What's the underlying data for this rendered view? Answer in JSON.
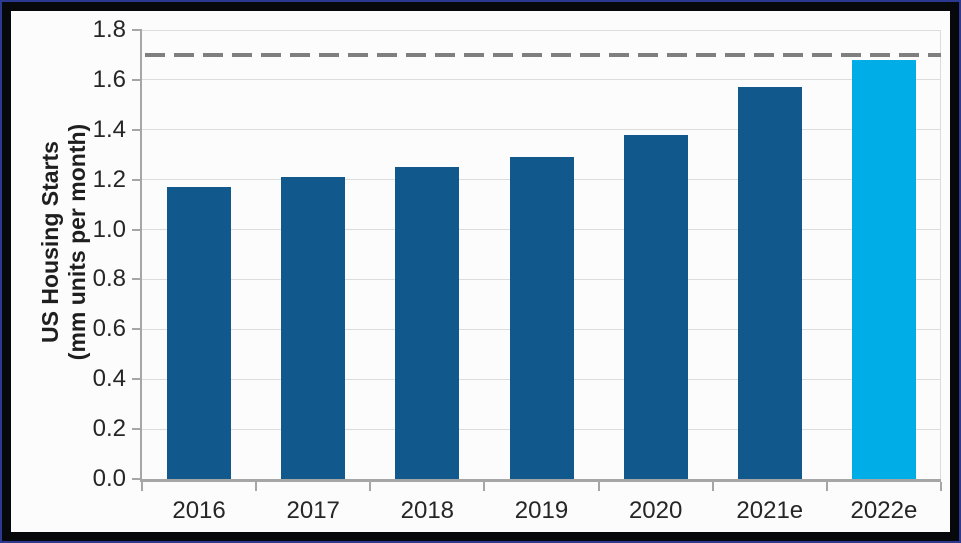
{
  "frame": {
    "outer_border_color": "#2B3990",
    "inner_border_color": "#07080C",
    "background_color": "#FCFCFC"
  },
  "chart_data": {
    "type": "bar",
    "title": "",
    "ylabel": "US Housing Starts (mm units per month)",
    "ylabel_lines": [
      "US Housing Starts",
      "(mm units per month)"
    ],
    "xlabel": "",
    "categories": [
      "2016",
      "2017",
      "2018",
      "2019",
      "2020",
      "2021e",
      "2022e"
    ],
    "values": [
      1.17,
      1.21,
      1.25,
      1.29,
      1.38,
      1.57,
      1.68
    ],
    "ylim": [
      0.0,
      1.8
    ],
    "ytick_step": 0.2,
    "yticks": [
      "1.8",
      "1.6",
      "1.4",
      "1.2",
      "1.0",
      "0.8",
      "0.6",
      "0.4",
      "0.2",
      "0.0"
    ],
    "grid": true,
    "legend": "none",
    "reference_line": {
      "value": 1.7,
      "style": "dashed",
      "color": "#7F7F7F"
    },
    "colors": {
      "bar_default": "#11588C",
      "bar_highlight": "#00ADE6",
      "highlight_category": "2022e",
      "gridline": "#DCDCDC",
      "axis": "#A6A6A6",
      "text": "#262626"
    }
  }
}
